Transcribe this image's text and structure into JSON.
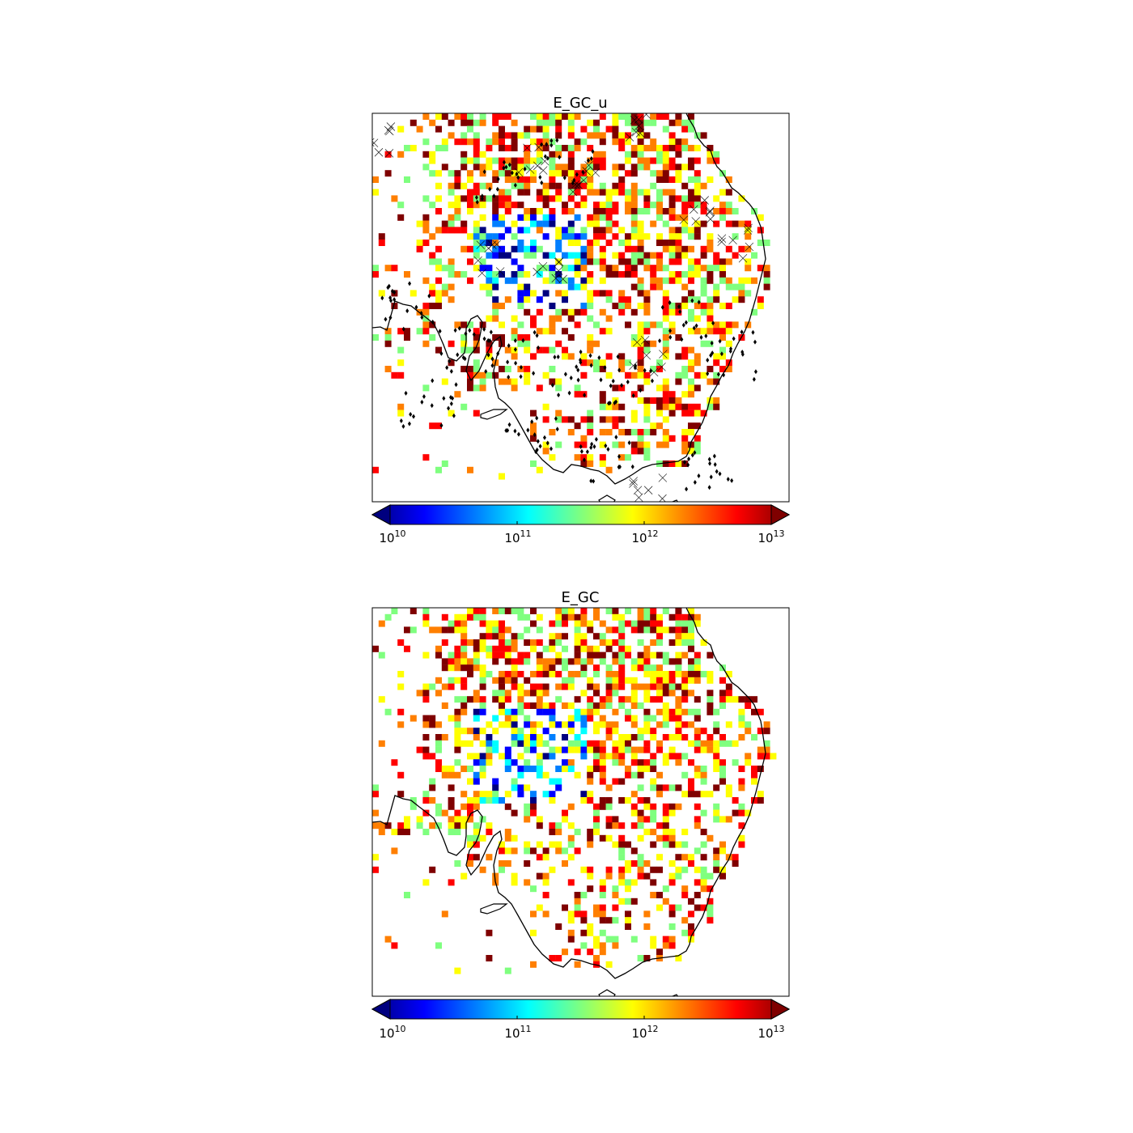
{
  "panels": [
    {
      "id": "top",
      "title": "E_GC_u",
      "seed": 17,
      "hatching": true,
      "colorbar": {
        "scale": "log",
        "range": [
          10000000000.0,
          10000000000000.0
        ],
        "ticks": [
          {
            "base": "10",
            "exp": "10"
          },
          {
            "base": "10",
            "exp": "11"
          },
          {
            "base": "10",
            "exp": "12"
          },
          {
            "base": "10",
            "exp": "13"
          }
        ]
      }
    },
    {
      "id": "bottom",
      "title": "E_GC",
      "seed": 91,
      "hatching": false,
      "colorbar": {
        "scale": "log",
        "range": [
          10000000000.0,
          10000000000000.0
        ],
        "ticks": [
          {
            "base": "10",
            "exp": "10"
          },
          {
            "base": "10",
            "exp": "11"
          },
          {
            "base": "10",
            "exp": "12"
          },
          {
            "base": "10",
            "exp": "13"
          }
        ]
      }
    }
  ],
  "colormap": {
    "name": "jet",
    "stops": [
      "#00007f",
      "#0000ff",
      "#007fff",
      "#00ffff",
      "#7fff7f",
      "#ffff00",
      "#ff7f00",
      "#ff0000",
      "#7f0000"
    ]
  },
  "colors": {
    "coastline": "#000000",
    "frame": "#000000",
    "marker": "#000000",
    "background": "#ffffff"
  }
}
